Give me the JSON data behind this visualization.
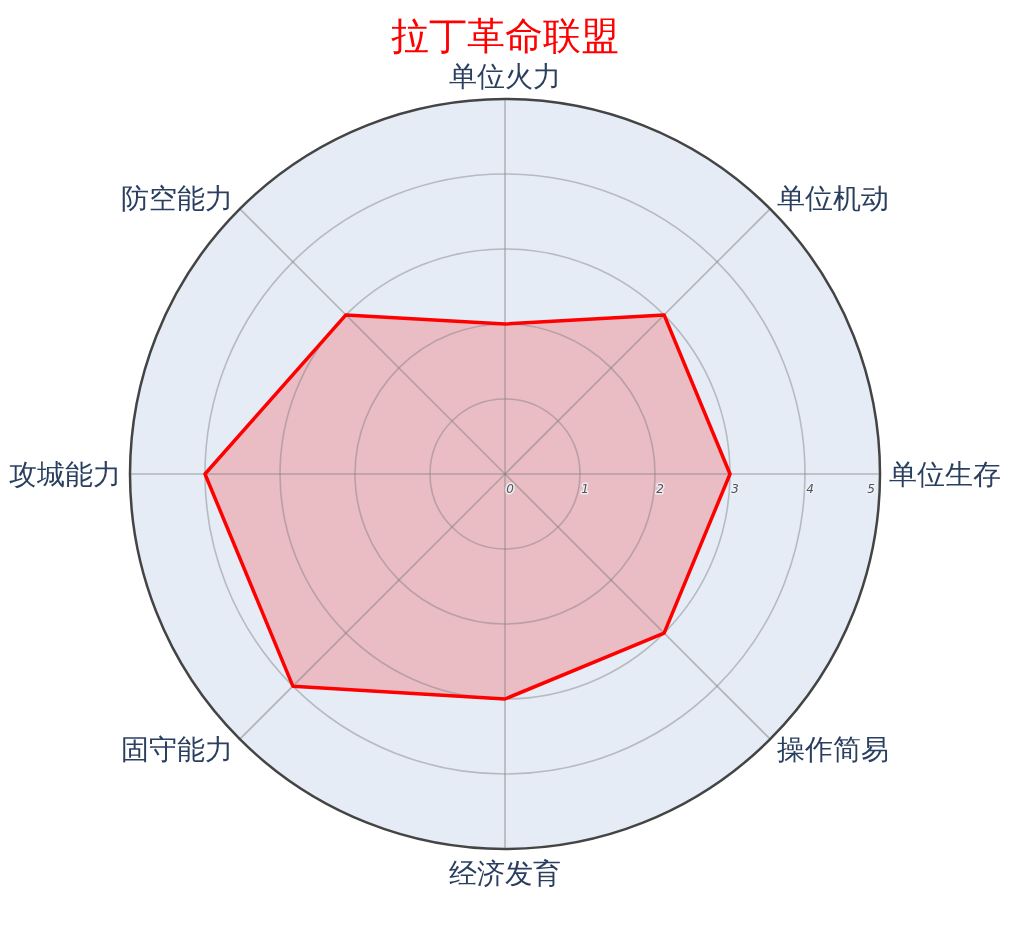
{
  "chart_data": {
    "type": "radar",
    "title": "拉丁革命联盟",
    "categories": [
      "单位火力",
      "单位机动",
      "单位生存",
      "操作简易",
      "经济发育",
      "固守能力",
      "攻城能力",
      "防空能力"
    ],
    "series": [
      {
        "color": "#ff0000",
        "values": [
          2,
          3,
          3,
          3,
          3,
          4,
          4,
          3
        ]
      }
    ],
    "ylim": [
      0,
      5
    ],
    "yticks": [
      0,
      1,
      2,
      3,
      4,
      5
    ],
    "grid": true
  }
}
